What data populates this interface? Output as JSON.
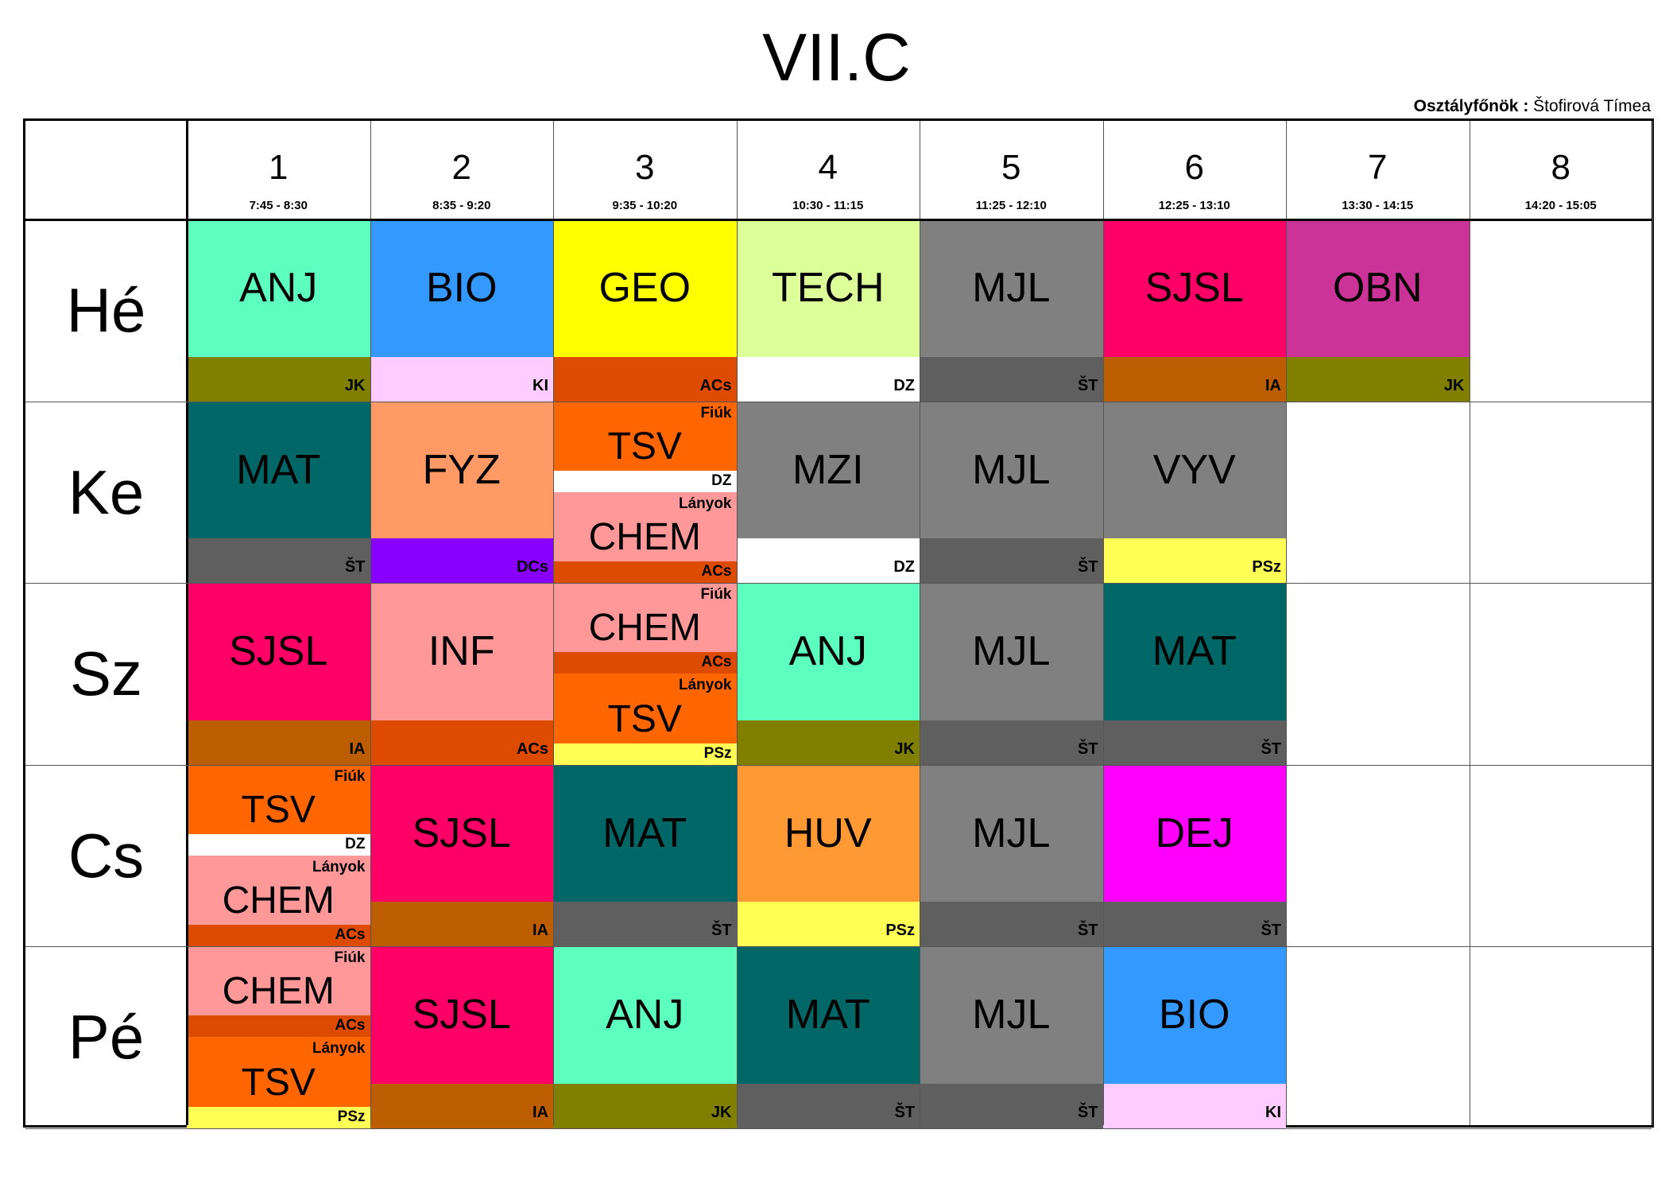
{
  "title": "VII.C",
  "class_teacher": {
    "label": "Osztályfőnök :",
    "name": "Štofirová Tímea"
  },
  "periods": [
    {
      "num": "1",
      "time": "7:45 - 8:30"
    },
    {
      "num": "2",
      "time": "8:35 - 9:20"
    },
    {
      "num": "3",
      "time": "9:35 - 10:20"
    },
    {
      "num": "4",
      "time": "10:30 - 11:15"
    },
    {
      "num": "5",
      "time": "11:25 - 12:10"
    },
    {
      "num": "6",
      "time": "12:25 - 13:10"
    },
    {
      "num": "7",
      "time": "13:30 - 14:15"
    },
    {
      "num": "8",
      "time": "14:20 - 15:05"
    }
  ],
  "days": [
    {
      "label": "Hé",
      "lessons": [
        {
          "period": 1,
          "subject": "ANJ",
          "teacher": "JK",
          "color": "#5DFFBE",
          "teacher_color": "#807F00"
        },
        {
          "period": 2,
          "subject": "BIO",
          "teacher": "KI",
          "color": "#3399FF",
          "teacher_color": "#FFCCFF"
        },
        {
          "period": 3,
          "subject": "GEO",
          "teacher": "ACs",
          "color": "#FFFF00",
          "teacher_color": "#DD4B00"
        },
        {
          "period": 4,
          "subject": "TECH",
          "teacher": "DZ",
          "color": "#DDFF9A",
          "teacher_color": "#FFFFFF"
        },
        {
          "period": 5,
          "subject": "MJL",
          "teacher": "ŠT",
          "color": "#808080",
          "teacher_color": "#5F5F5F"
        },
        {
          "period": 6,
          "subject": "SJSL",
          "teacher": "IA",
          "color": "#FF0066",
          "teacher_color": "#BC5E00"
        },
        {
          "period": 7,
          "subject": "OBN",
          "teacher": "JK",
          "color": "#CC3399",
          "teacher_color": "#807F00"
        }
      ]
    },
    {
      "label": "Ke",
      "lessons": [
        {
          "period": 1,
          "subject": "MAT",
          "teacher": "ŠT",
          "color": "#006666",
          "teacher_color": "#5F5F5F"
        },
        {
          "period": 2,
          "subject": "FYZ",
          "teacher": "DCs",
          "color": "#FF9966",
          "teacher_color": "#8800FF"
        },
        {
          "period": 3,
          "split": true,
          "parts": [
            {
              "group": "Fiúk",
              "subject": "TSV",
              "teacher": "DZ",
              "color": "#FF6600",
              "teacher_color": "#FFFFFF"
            },
            {
              "group": "Lányok",
              "subject": "CHEM",
              "teacher": "ACs",
              "color": "#FF9999",
              "teacher_color": "#DD4B00"
            }
          ]
        },
        {
          "period": 4,
          "subject": "MZI",
          "teacher": "DZ",
          "color": "#808080",
          "teacher_color": "#FFFFFF"
        },
        {
          "period": 5,
          "subject": "MJL",
          "teacher": "ŠT",
          "color": "#808080",
          "teacher_color": "#5F5F5F"
        },
        {
          "period": 6,
          "subject": "VYV",
          "teacher": "PSz",
          "color": "#808080",
          "teacher_color": "#FFFF55"
        }
      ]
    },
    {
      "label": "Sz",
      "lessons": [
        {
          "period": 1,
          "subject": "SJSL",
          "teacher": "IA",
          "color": "#FF0066",
          "teacher_color": "#BC5E00"
        },
        {
          "period": 2,
          "subject": "INF",
          "teacher": "ACs",
          "color": "#FF9999",
          "teacher_color": "#DD4B00"
        },
        {
          "period": 3,
          "split": true,
          "parts": [
            {
              "group": "Fiúk",
              "subject": "CHEM",
              "teacher": "ACs",
              "color": "#FF9999",
              "teacher_color": "#DD4B00"
            },
            {
              "group": "Lányok",
              "subject": "TSV",
              "teacher": "PSz",
              "color": "#FF6600",
              "teacher_color": "#FFFF55"
            }
          ]
        },
        {
          "period": 4,
          "subject": "ANJ",
          "teacher": "JK",
          "color": "#5DFFBE",
          "teacher_color": "#807F00"
        },
        {
          "period": 5,
          "subject": "MJL",
          "teacher": "ŠT",
          "color": "#808080",
          "teacher_color": "#5F5F5F"
        },
        {
          "period": 6,
          "subject": "MAT",
          "teacher": "ŠT",
          "color": "#006666",
          "teacher_color": "#5F5F5F"
        }
      ]
    },
    {
      "label": "Cs",
      "lessons": [
        {
          "period": 1,
          "split": true,
          "parts": [
            {
              "group": "Fiúk",
              "subject": "TSV",
              "teacher": "DZ",
              "color": "#FF6600",
              "teacher_color": "#FFFFFF"
            },
            {
              "group": "Lányok",
              "subject": "CHEM",
              "teacher": "ACs",
              "color": "#FF9999",
              "teacher_color": "#DD4B00"
            }
          ]
        },
        {
          "period": 2,
          "subject": "SJSL",
          "teacher": "IA",
          "color": "#FF0066",
          "teacher_color": "#BC5E00"
        },
        {
          "period": 3,
          "subject": "MAT",
          "teacher": "ŠT",
          "color": "#006666",
          "teacher_color": "#5F5F5F"
        },
        {
          "period": 4,
          "subject": "HUV",
          "teacher": "PSz",
          "color": "#FF9933",
          "teacher_color": "#FFFF55"
        },
        {
          "period": 5,
          "subject": "MJL",
          "teacher": "ŠT",
          "color": "#808080",
          "teacher_color": "#5F5F5F"
        },
        {
          "period": 6,
          "subject": "DEJ",
          "teacher": "ŠT",
          "color": "#FF00FF",
          "teacher_color": "#5F5F5F"
        }
      ]
    },
    {
      "label": "Pé",
      "lessons": [
        {
          "period": 1,
          "split": true,
          "parts": [
            {
              "group": "Fiúk",
              "subject": "CHEM",
              "teacher": "ACs",
              "color": "#FF9999",
              "teacher_color": "#DD4B00"
            },
            {
              "group": "Lányok",
              "subject": "TSV",
              "teacher": "PSz",
              "color": "#FF6600",
              "teacher_color": "#FFFF55"
            }
          ]
        },
        {
          "period": 2,
          "subject": "SJSL",
          "teacher": "IA",
          "color": "#FF0066",
          "teacher_color": "#BC5E00"
        },
        {
          "period": 3,
          "subject": "ANJ",
          "teacher": "JK",
          "color": "#5DFFBE",
          "teacher_color": "#807F00"
        },
        {
          "period": 4,
          "subject": "MAT",
          "teacher": "ŠT",
          "color": "#006666",
          "teacher_color": "#5F5F5F"
        },
        {
          "period": 5,
          "subject": "MJL",
          "teacher": "ŠT",
          "color": "#808080",
          "teacher_color": "#5F5F5F"
        },
        {
          "period": 6,
          "subject": "BIO",
          "teacher": "KI",
          "color": "#3399FF",
          "teacher_color": "#FFCCFF"
        }
      ]
    }
  ]
}
